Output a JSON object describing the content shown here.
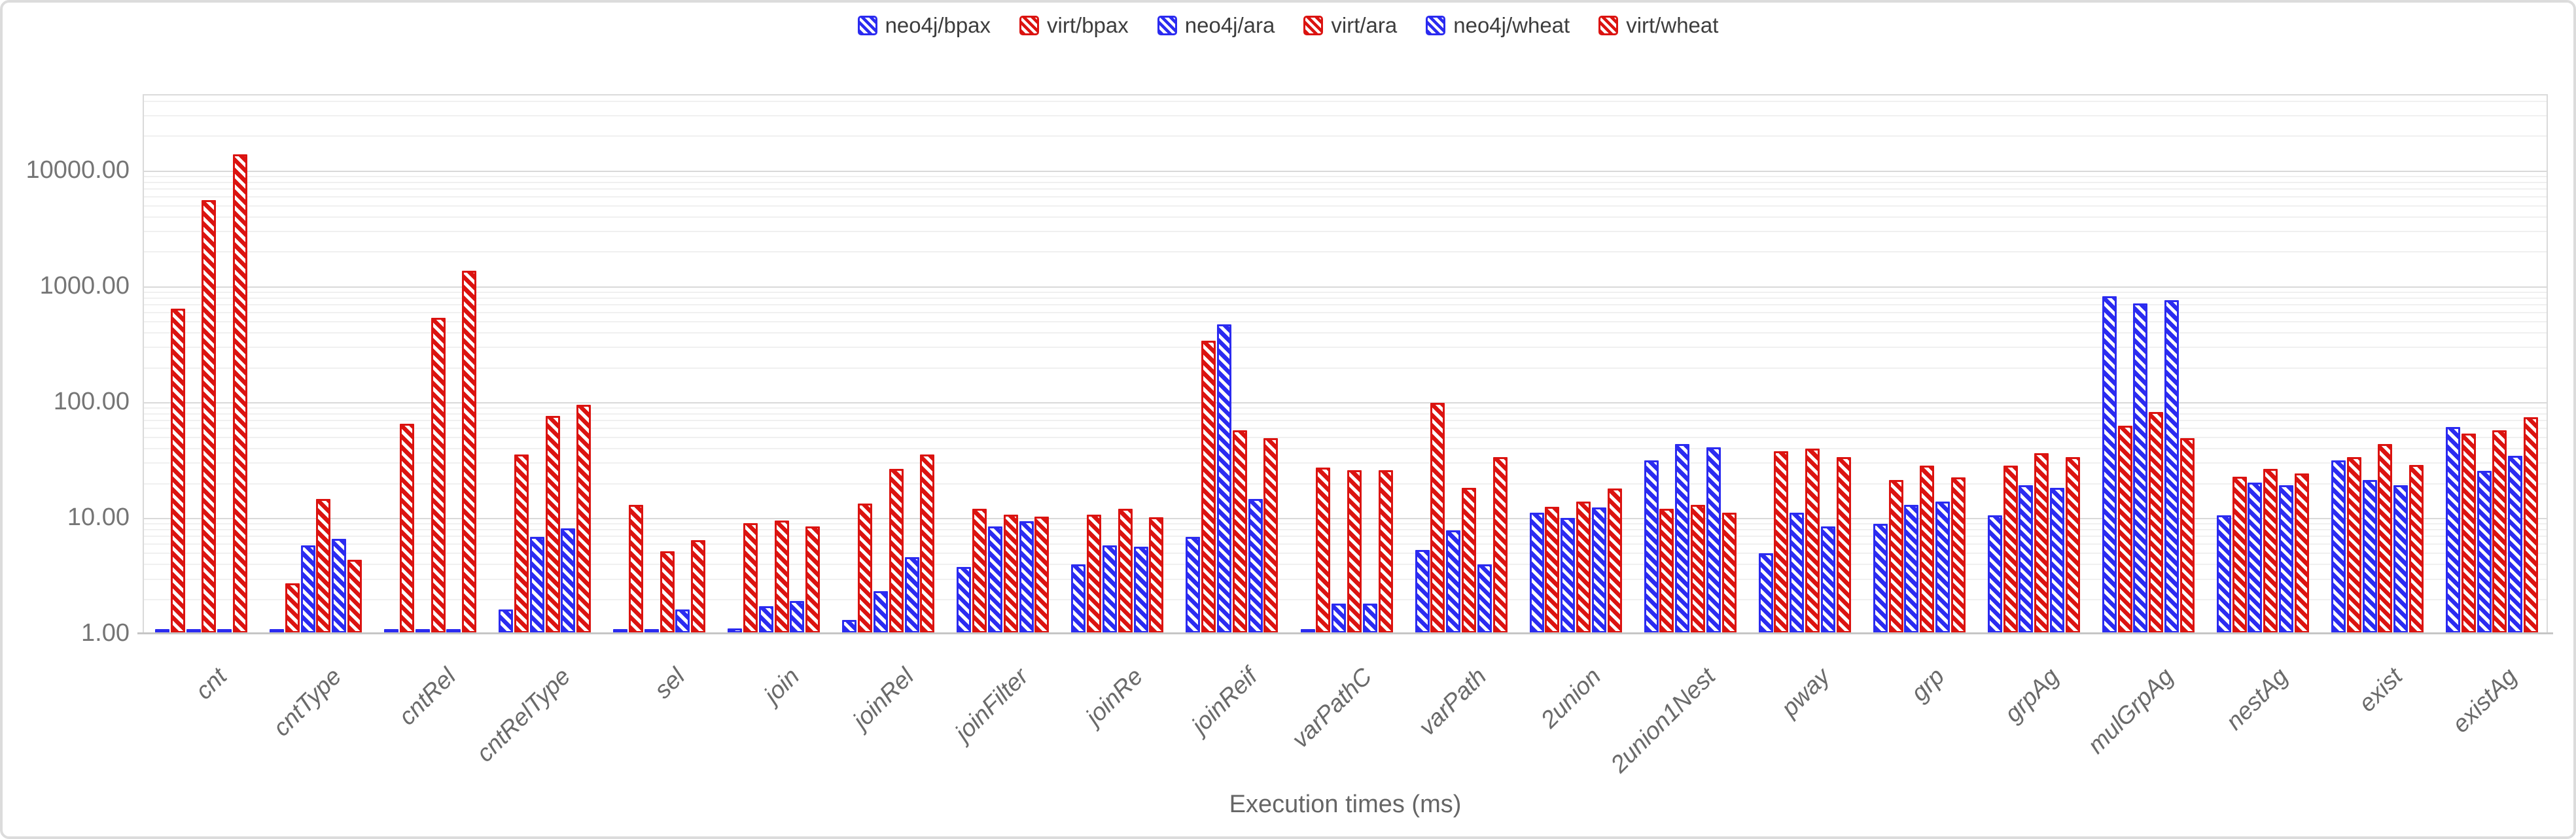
{
  "chart_data": {
    "type": "bar",
    "title": "",
    "xlabel": "Execution times (ms)",
    "y_scale": "log",
    "ylim": [
      1,
      45000
    ],
    "grid": "log major + minor gridlines, horizontal",
    "legend_position": "top-center",
    "y_axis": {
      "ticks": [
        {
          "value": 10000,
          "label": "10000.00"
        },
        {
          "value": 1000,
          "label": "1000.00"
        },
        {
          "value": 100,
          "label": "100.00"
        },
        {
          "value": 10,
          "label": "10.00"
        },
        {
          "value": 1,
          "label": "1.00"
        }
      ]
    },
    "categories": [
      "cnt",
      "cntType",
      "cntRel",
      "cntRelType",
      "sel",
      "join",
      "joinRel",
      "joinFilter",
      "joinRe",
      "joinReif",
      "varPathC",
      "varPath",
      "2union",
      "2union1Nest",
      "pway",
      "grp",
      "grpAg",
      "mulGrpAg",
      "nestAg",
      "exist",
      "existAg"
    ],
    "series": [
      {
        "name": "neo4j/bpax",
        "color": "#2b2bf0",
        "values": [
          1.05,
          1.05,
          1.05,
          1.6,
          1.05,
          1.1,
          1.3,
          3.7,
          3.9,
          6.8,
          1.05,
          5.2,
          11,
          31,
          4.9,
          8.8,
          10.4,
          810,
          10.4,
          31,
          60
        ]
      },
      {
        "name": "virt/bpax",
        "color": "#db1310",
        "values": [
          630,
          2.7,
          64,
          35,
          12.8,
          8.9,
          13.2,
          11.8,
          10.5,
          335,
          27,
          97,
          12.3,
          11.8,
          37,
          21,
          28,
          62,
          22.5,
          33,
          53
        ]
      },
      {
        "name": "neo4j/ara",
        "color": "#2b2bf0",
        "values": [
          1.05,
          5.7,
          1.05,
          6.8,
          1.05,
          1.7,
          2.3,
          8.3,
          5.7,
          465,
          1.8,
          7.7,
          9.8,
          43,
          10.9,
          12.8,
          19,
          700,
          20,
          21,
          25
        ]
      },
      {
        "name": "virt/ara",
        "color": "#db1310",
        "values": [
          5450,
          14.3,
          530,
          75,
          5.1,
          9.4,
          26,
          10.5,
          11.8,
          56,
          25.5,
          18,
          13.7,
          12.8,
          39,
          28,
          35.5,
          81,
          26,
          43,
          56
        ]
      },
      {
        "name": "neo4j/wheat",
        "color": "#2b2bf0",
        "values": [
          1.05,
          6.5,
          1.05,
          8,
          1.6,
          1.9,
          4.5,
          9.2,
          5.6,
          14.3,
          1.8,
          3.9,
          12.1,
          40,
          8.3,
          13.7,
          18,
          745,
          19,
          19,
          34
        ]
      },
      {
        "name": "virt/wheat",
        "color": "#db1310",
        "values": [
          13600,
          4.3,
          1350,
          93,
          6.3,
          8.3,
          35,
          10.1,
          10,
          48.5,
          25.5,
          33,
          17.6,
          11,
          33,
          22,
          33,
          48.5,
          24,
          28.3,
          73.5
        ]
      }
    ]
  },
  "colors": {
    "neo4j_blue": "#2b2bf0",
    "virt_red": "#db1310",
    "grid_major": "#d9d9d9",
    "grid_minor": "#f0f0f0",
    "axis_line": "#c6c6c6",
    "axis_text": "#757575",
    "category_text": "#6a6a6a",
    "legend_text": "#3d3d3d",
    "frame_border": "#dcdcdc"
  }
}
